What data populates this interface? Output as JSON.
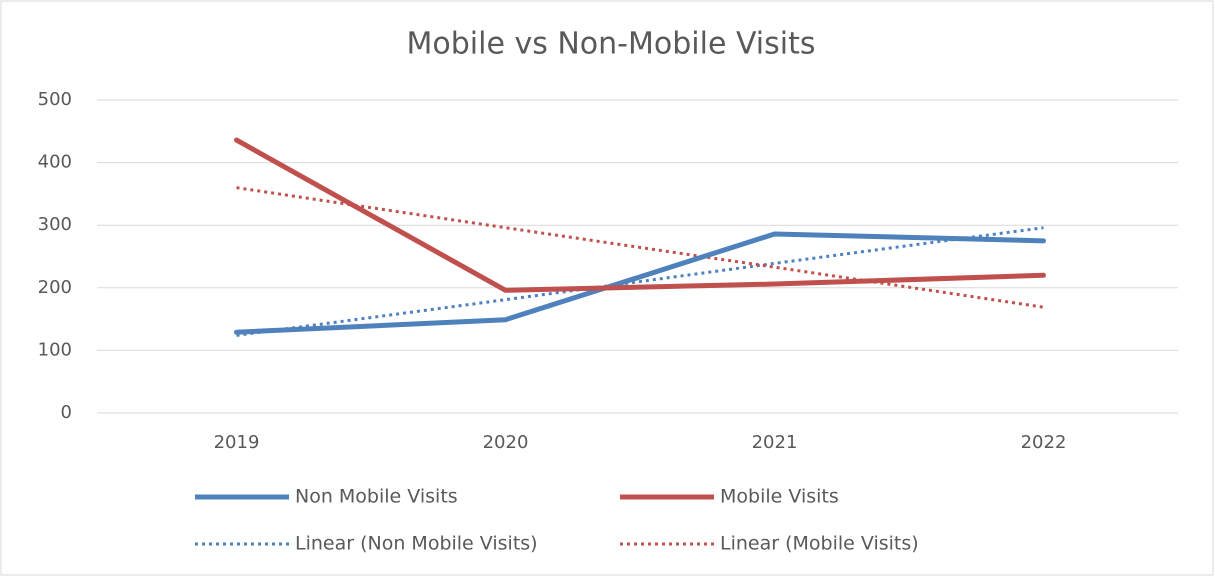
{
  "chart_data": {
    "type": "line",
    "title": "Mobile vs Non-Mobile Visits",
    "categories": [
      "2019",
      "2020",
      "2021",
      "2022"
    ],
    "series": [
      {
        "name": "Non Mobile Visits",
        "color": "#4f81bd",
        "values": [
          129,
          149,
          286,
          275
        ]
      },
      {
        "name": "Mobile Visits",
        "color": "#c0504d",
        "values": [
          436,
          196,
          206,
          220
        ]
      },
      {
        "name": "Linear (Non Mobile Visits)",
        "color": "#4f81bd",
        "dashed": true,
        "values": [
          124,
          181,
          239,
          296
        ]
      },
      {
        "name": "Linear (Mobile Visits)",
        "color": "#c0504d",
        "dashed": true,
        "values": [
          360,
          296,
          233,
          169
        ]
      }
    ],
    "ylim": [
      0,
      500
    ],
    "yticks": [
      0,
      100,
      200,
      300,
      400,
      500
    ],
    "grid": true,
    "legend": "bottom"
  }
}
